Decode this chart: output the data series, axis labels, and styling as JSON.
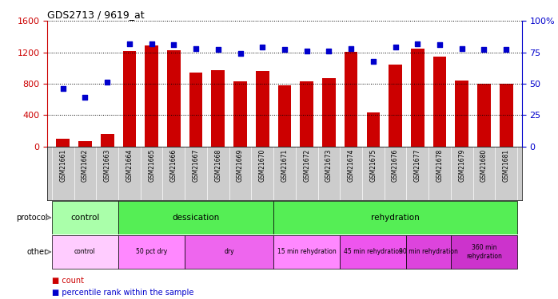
{
  "title": "GDS2713 / 9619_at",
  "samples": [
    "GSM21661",
    "GSM21662",
    "GSM21663",
    "GSM21664",
    "GSM21665",
    "GSM21666",
    "GSM21667",
    "GSM21668",
    "GSM21669",
    "GSM21670",
    "GSM21671",
    "GSM21672",
    "GSM21673",
    "GSM21674",
    "GSM21675",
    "GSM21676",
    "GSM21677",
    "GSM21678",
    "GSM21679",
    "GSM21680",
    "GSM21681"
  ],
  "counts": [
    100,
    70,
    155,
    1215,
    1290,
    1230,
    940,
    970,
    830,
    960,
    780,
    830,
    870,
    1210,
    430,
    1040,
    1250,
    1150,
    840,
    800,
    800
  ],
  "percentiles": [
    46,
    39,
    51,
    82,
    82,
    81,
    78,
    77,
    74,
    79,
    77,
    76,
    76,
    78,
    68,
    79,
    82,
    81,
    78,
    77,
    77
  ],
  "bar_color": "#cc0000",
  "dot_color": "#0000cc",
  "ylim_left": [
    0,
    1600
  ],
  "ylim_right": [
    0,
    100
  ],
  "yticks_left": [
    0,
    400,
    800,
    1200,
    1600
  ],
  "yticks_right": [
    0,
    25,
    50,
    75,
    100
  ],
  "protocol_groups": [
    {
      "label": "control",
      "start": 0,
      "end": 3,
      "color": "#aaffaa"
    },
    {
      "label": "dessication",
      "start": 3,
      "end": 10,
      "color": "#55ee55"
    },
    {
      "label": "rehydration",
      "start": 10,
      "end": 21,
      "color": "#55ee55"
    }
  ],
  "other_groups": [
    {
      "label": "control",
      "start": 0,
      "end": 3,
      "color": "#ffccff"
    },
    {
      "label": "50 pct dry",
      "start": 3,
      "end": 6,
      "color": "#ff88ff"
    },
    {
      "label": "dry",
      "start": 6,
      "end": 10,
      "color": "#ee66ee"
    },
    {
      "label": "15 min rehydration",
      "start": 10,
      "end": 13,
      "color": "#ff88ff"
    },
    {
      "label": "45 min rehydration",
      "start": 13,
      "end": 16,
      "color": "#ee55ee"
    },
    {
      "label": "90 min rehydration",
      "start": 16,
      "end": 18,
      "color": "#dd44dd"
    },
    {
      "label": "360 min\nrehydration",
      "start": 18,
      "end": 21,
      "color": "#cc33cc"
    }
  ],
  "xtick_bg": "#cccccc",
  "background_color": "#ffffff",
  "tick_label_color_left": "#cc0000",
  "tick_label_color_right": "#0000cc"
}
